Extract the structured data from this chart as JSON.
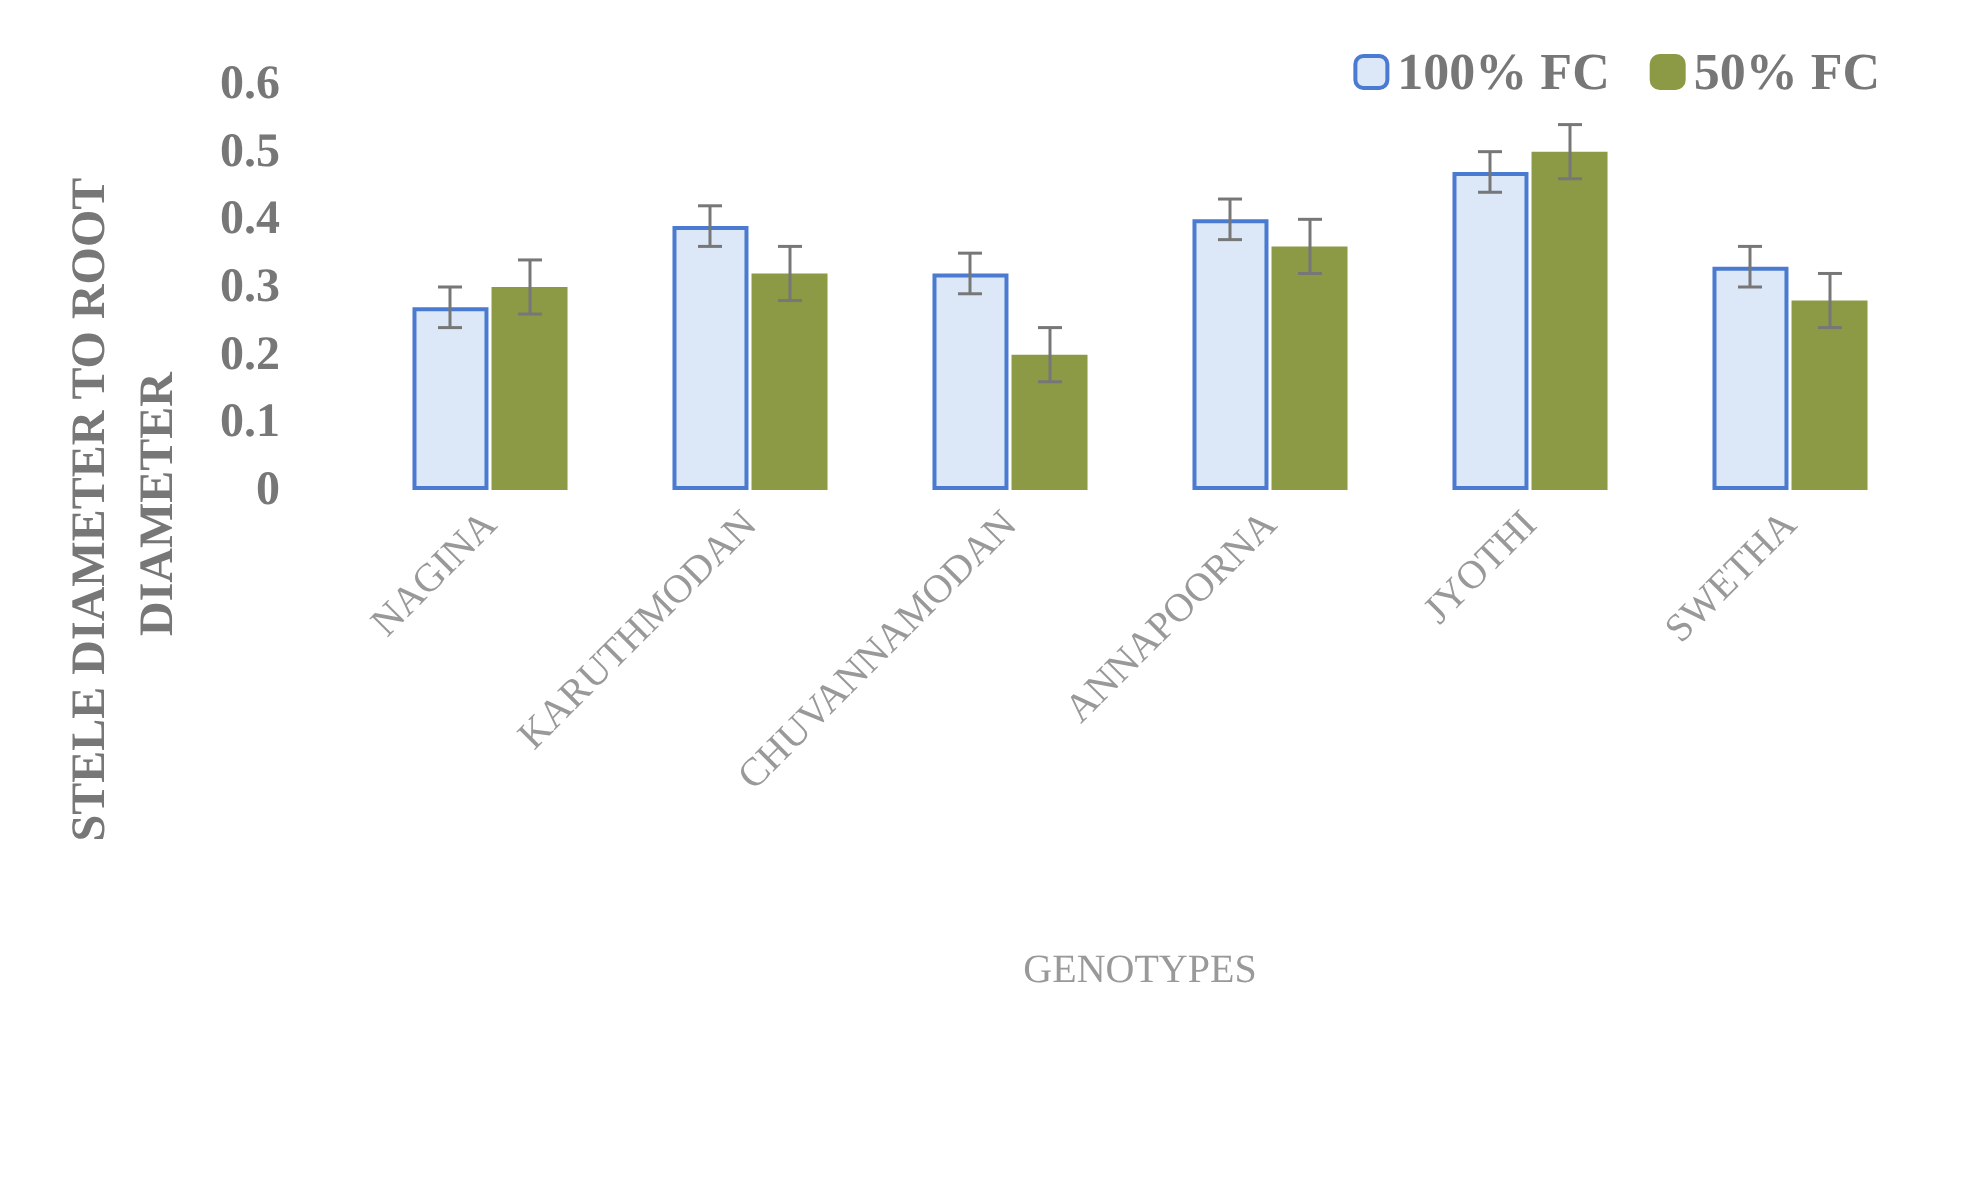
{
  "chart_data": {
    "type": "bar",
    "xlabel": "GENOTYPES",
    "ylabel": "STELE DIAMETER TO ROOT DIAMETER",
    "categories": [
      "NAGINA",
      "KARUTHMODAN",
      "CHUVANNAMODAN",
      "ANNAPOORNA",
      "JYOTHI",
      "SWETHA"
    ],
    "series": [
      {
        "name": "100% FC",
        "color": "#dce7f7",
        "values": [
          0.27,
          0.39,
          0.32,
          0.4,
          0.47,
          0.33
        ],
        "errors": [
          0.03,
          0.03,
          0.03,
          0.03,
          0.03,
          0.03
        ]
      },
      {
        "name": "50% FC",
        "color": "#8c9a45",
        "values": [
          0.3,
          0.32,
          0.2,
          0.36,
          0.5,
          0.28
        ],
        "errors": [
          0.04,
          0.04,
          0.04,
          0.04,
          0.04,
          0.04
        ]
      }
    ],
    "ylim": [
      0,
      0.6
    ],
    "yticks": [
      0,
      0.1,
      0.2,
      0.3,
      0.4,
      0.5,
      0.6
    ],
    "grid": false,
    "legend": "top right"
  }
}
